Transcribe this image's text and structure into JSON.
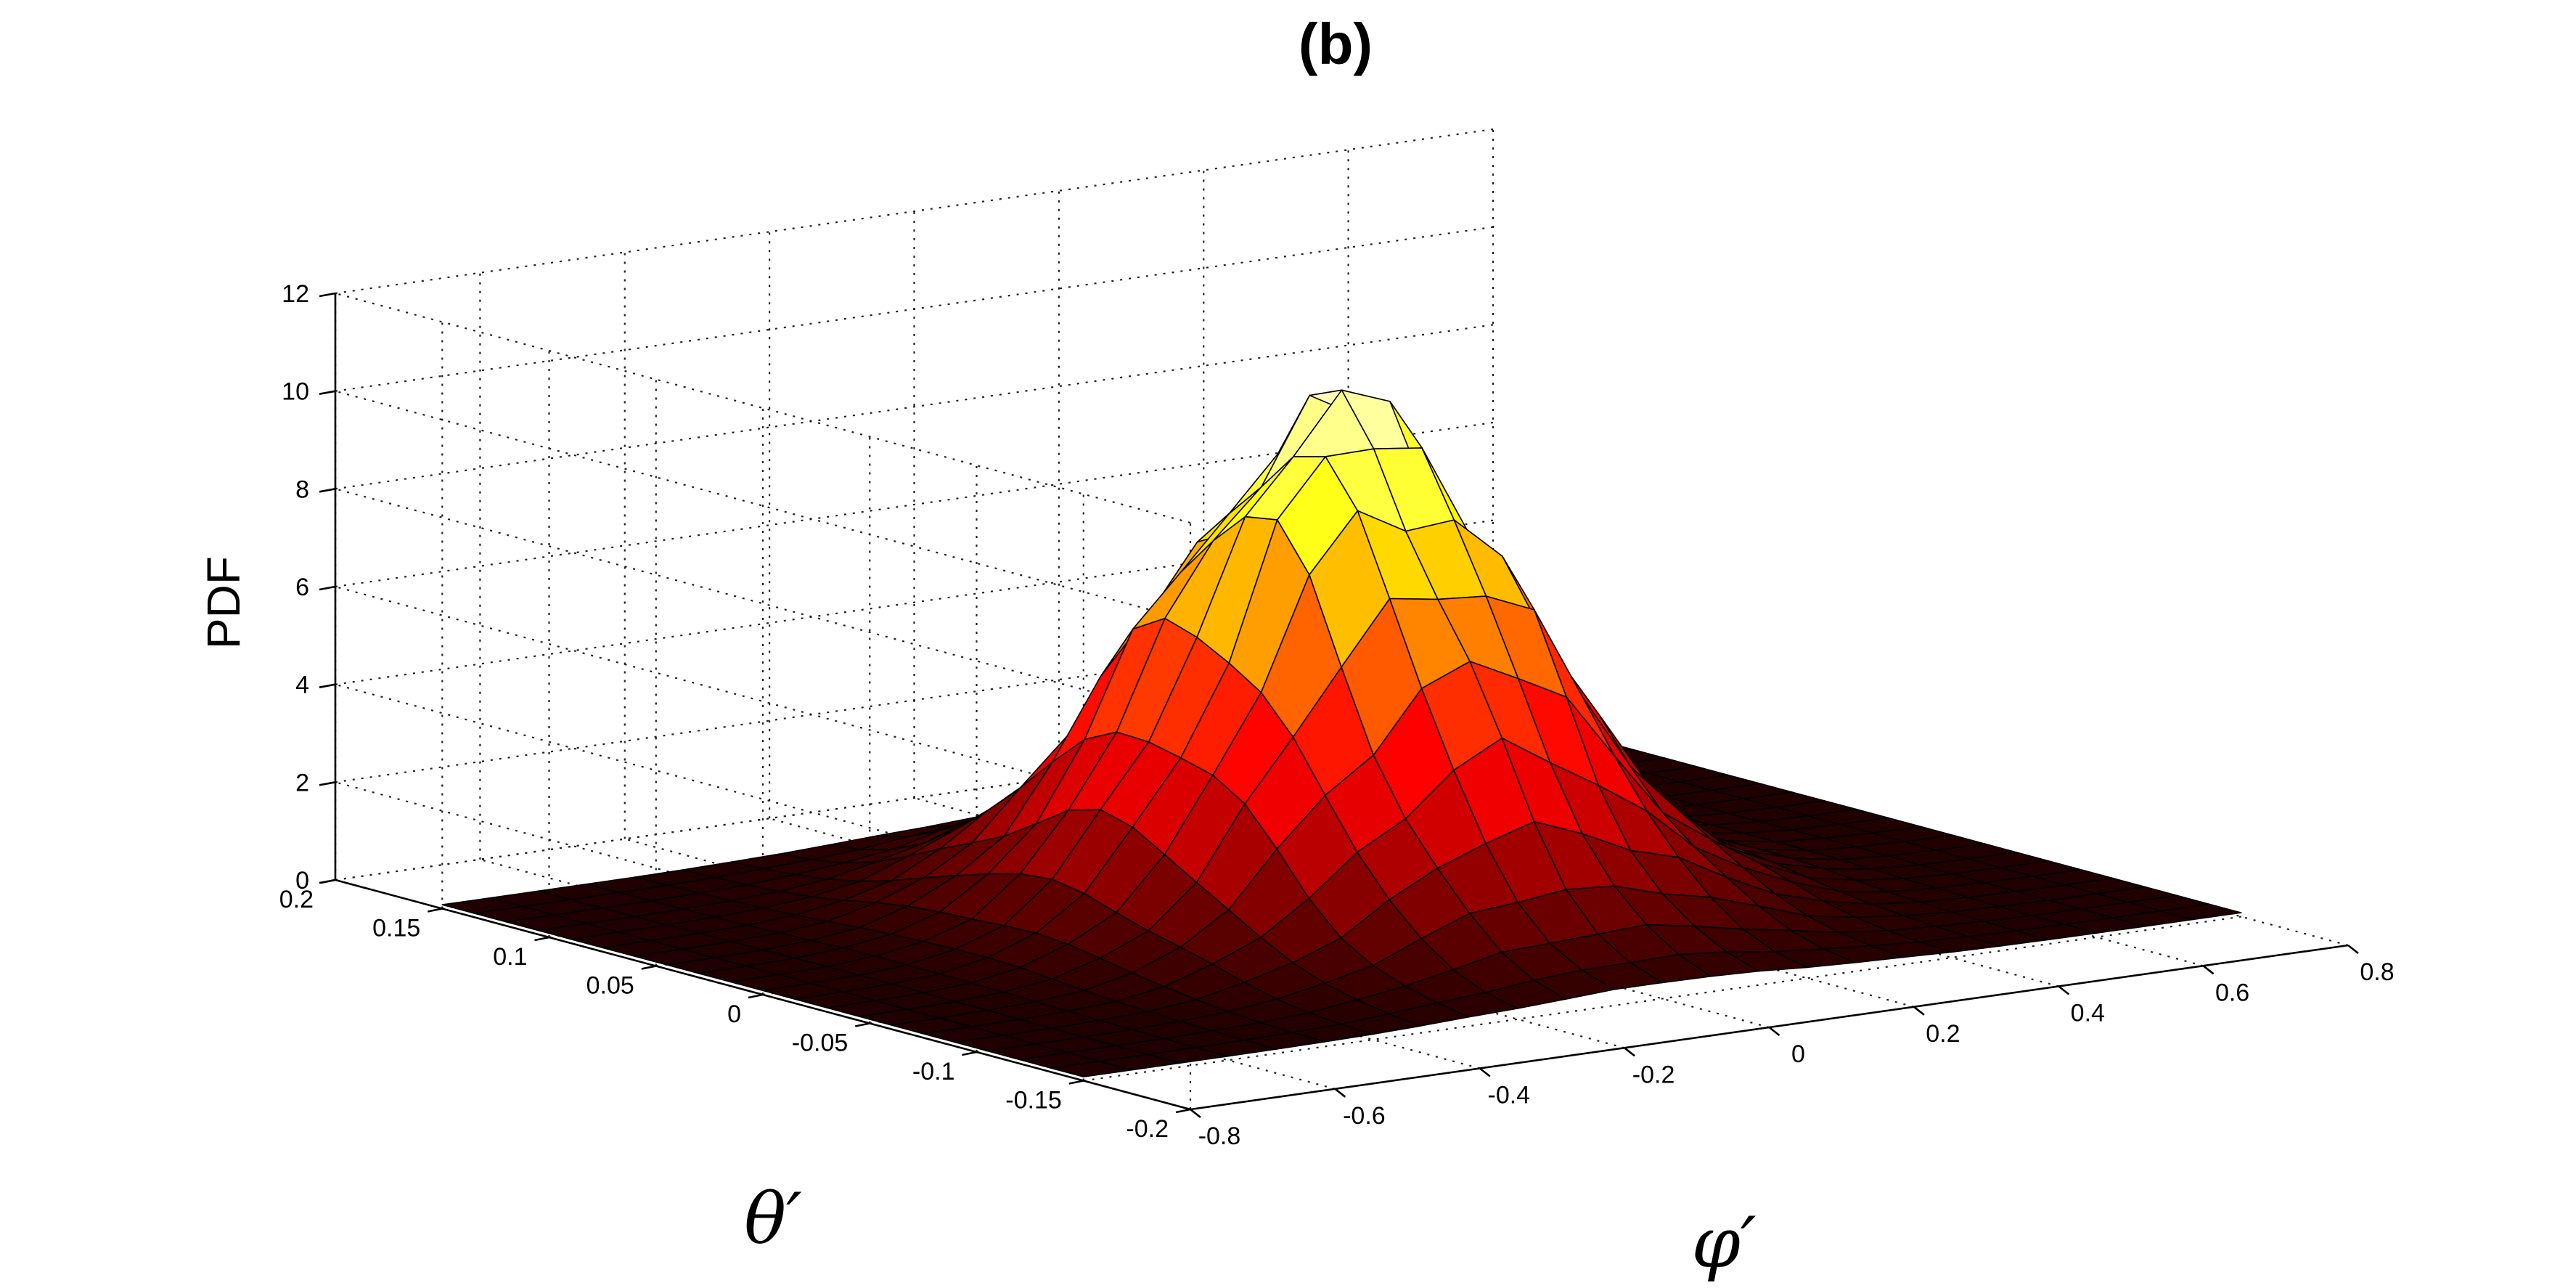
{
  "chart_data": {
    "type": "surface3d",
    "title": "(b)",
    "xlabel": "φ′",
    "ylabel": "θ′",
    "zlabel": "PDF",
    "xlim": [
      -0.8,
      0.8
    ],
    "ylim": [
      -0.2,
      0.2
    ],
    "zlim": [
      0,
      12
    ],
    "xticks": [
      -0.8,
      -0.6,
      -0.4,
      -0.2,
      0,
      0.2,
      0.4,
      0.6,
      0.8
    ],
    "xtick_labels": [
      "-0.8",
      "-0.6",
      "-0.4",
      "-0.2",
      "0",
      "0.2",
      "0.4",
      "0.6",
      "0.8"
    ],
    "yticks": [
      -0.2,
      -0.15,
      -0.1,
      -0.05,
      0,
      0.05,
      0.1,
      0.15,
      0.2
    ],
    "ytick_labels": [
      "-0.2",
      "-0.15",
      "-0.1",
      "-0.05",
      "0",
      "0.05",
      "0.1",
      "0.15",
      "0.2"
    ],
    "zticks": [
      0,
      2,
      4,
      6,
      8,
      10,
      12
    ],
    "ztick_labels": [
      "0",
      "2",
      "4",
      "6",
      "8",
      "10",
      "12"
    ],
    "grid": true,
    "colormap": "hot",
    "surface": {
      "x_range": [
        -0.8,
        0.8
      ],
      "y_range": [
        -0.15,
        0.15
      ],
      "nx": 25,
      "ny": 21,
      "peak": {
        "x": 0.0,
        "y": 0.0,
        "z": 10.2
      },
      "sigma_x": 0.2,
      "sigma_y": 0.055
    }
  }
}
